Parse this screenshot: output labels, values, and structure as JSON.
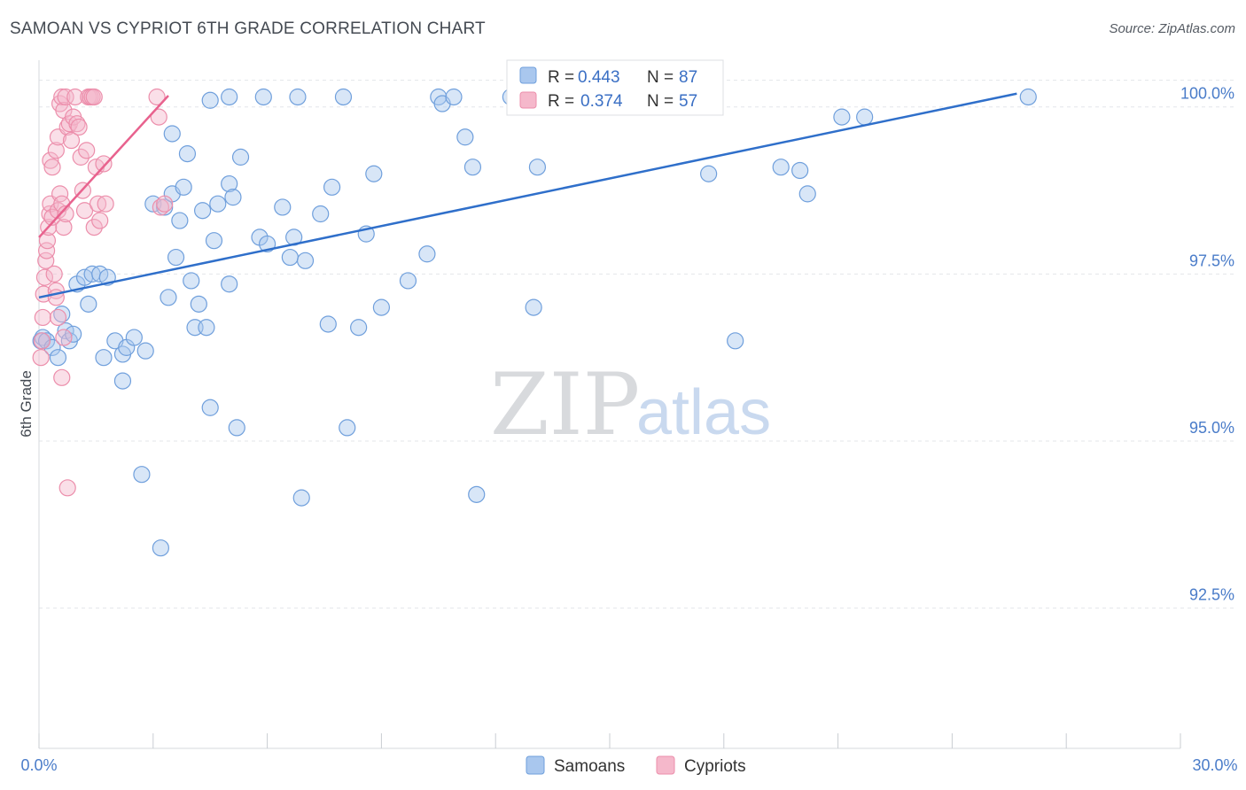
{
  "header": {
    "title": "SAMOAN VS CYPRIOT 6TH GRADE CORRELATION CHART",
    "source": "Source: ZipAtlas.com"
  },
  "watermark": {
    "zip": "ZIP",
    "atlas": "atlas"
  },
  "colors": {
    "samoans_fill": "#a9c7ee",
    "samoans_stroke": "#6f9fdc",
    "samoans_line": "#2f6fca",
    "cypriots_fill": "#f5b8cb",
    "cypriots_stroke": "#ec8eab",
    "cypriots_line": "#e8628e",
    "tick_text": "#4a7cc9",
    "grid": "#e3e6ea"
  },
  "legend": {
    "samoans": {
      "r_label": "R = ",
      "r_value": "0.443",
      "n_label": "N = ",
      "n_value": "87"
    },
    "cypriots": {
      "r_label": "R = ",
      "r_value": "0.374",
      "n_label": "N = ",
      "n_value": "57"
    }
  },
  "chart_data": {
    "type": "scatter",
    "title": "SAMOAN VS CYPRIOT 6TH GRADE CORRELATION CHART",
    "xlabel": "",
    "ylabel": "6th Grade",
    "xlim": [
      0,
      30
    ],
    "ylim": [
      90.2,
      100.5
    ],
    "x_tick_labels": [
      "0.0%",
      "30.0%"
    ],
    "y_ticks": [
      92.5,
      95.0,
      97.5,
      100.0
    ],
    "y_tick_labels": [
      "92.5%",
      "95.0%",
      "97.5%",
      "100.0%"
    ],
    "grid": true,
    "legend_position": "top-center",
    "series": [
      {
        "name": "Samoans",
        "r": 0.443,
        "n": 87,
        "trend": {
          "x": [
            0,
            25.7
          ],
          "y": [
            96.95,
            100.0
          ]
        },
        "points": [
          [
            0.05,
            96.3
          ],
          [
            0.1,
            96.35
          ],
          [
            0.2,
            96.3
          ],
          [
            0.35,
            96.2
          ],
          [
            0.5,
            96.05
          ],
          [
            0.6,
            96.7
          ],
          [
            0.7,
            96.45
          ],
          [
            0.8,
            96.3
          ],
          [
            0.9,
            96.4
          ],
          [
            1.0,
            97.15
          ],
          [
            1.2,
            97.25
          ],
          [
            1.3,
            96.85
          ],
          [
            1.4,
            97.3
          ],
          [
            1.6,
            97.3
          ],
          [
            1.8,
            97.25
          ],
          [
            1.7,
            96.05
          ],
          [
            2.0,
            96.3
          ],
          [
            2.2,
            96.1
          ],
          [
            2.3,
            96.2
          ],
          [
            2.5,
            96.35
          ],
          [
            2.2,
            95.7
          ],
          [
            2.8,
            96.15
          ],
          [
            3.0,
            98.35
          ],
          [
            3.3,
            98.3
          ],
          [
            3.4,
            96.95
          ],
          [
            3.5,
            98.5
          ],
          [
            3.6,
            97.55
          ],
          [
            3.5,
            99.4
          ],
          [
            3.7,
            98.1
          ],
          [
            3.8,
            98.6
          ],
          [
            3.9,
            99.1
          ],
          [
            4.0,
            97.2
          ],
          [
            4.1,
            96.5
          ],
          [
            4.2,
            96.85
          ],
          [
            4.3,
            98.25
          ],
          [
            4.4,
            96.5
          ],
          [
            4.5,
            95.3
          ],
          [
            4.6,
            97.8
          ],
          [
            4.5,
            99.9
          ],
          [
            4.7,
            98.35
          ],
          [
            5.0,
            99.95
          ],
          [
            5.0,
            98.65
          ],
          [
            5.1,
            98.45
          ],
          [
            5.2,
            95.0
          ],
          [
            5.0,
            97.15
          ],
          [
            5.3,
            99.05
          ],
          [
            5.8,
            97.85
          ],
          [
            5.9,
            99.95
          ],
          [
            6.0,
            97.75
          ],
          [
            6.4,
            98.3
          ],
          [
            6.6,
            97.55
          ],
          [
            6.7,
            97.85
          ],
          [
            6.8,
            99.95
          ],
          [
            6.9,
            93.95
          ],
          [
            7.0,
            97.5
          ],
          [
            7.4,
            98.2
          ],
          [
            7.6,
            96.55
          ],
          [
            7.7,
            98.6
          ],
          [
            8.0,
            99.95
          ],
          [
            8.1,
            95.0
          ],
          [
            8.4,
            96.5
          ],
          [
            8.6,
            97.9
          ],
          [
            8.8,
            98.8
          ],
          [
            9.0,
            96.8
          ],
          [
            9.7,
            97.2
          ],
          [
            10.2,
            97.6
          ],
          [
            10.5,
            99.95
          ],
          [
            10.6,
            99.85
          ],
          [
            10.9,
            99.95
          ],
          [
            11.2,
            99.35
          ],
          [
            11.4,
            98.9
          ],
          [
            11.5,
            94.0
          ],
          [
            12.4,
            99.95
          ],
          [
            13.0,
            96.8
          ],
          [
            13.1,
            98.9
          ],
          [
            14.2,
            99.95
          ],
          [
            14.9,
            99.95
          ],
          [
            17.6,
            98.8
          ],
          [
            18.3,
            96.3
          ],
          [
            19.5,
            98.9
          ],
          [
            20.0,
            98.85
          ],
          [
            20.2,
            98.5
          ],
          [
            21.1,
            99.65
          ],
          [
            21.7,
            99.65
          ],
          [
            26.0,
            99.95
          ],
          [
            2.7,
            94.3
          ],
          [
            3.2,
            93.2
          ]
        ]
      },
      {
        "name": "Cypriots",
        "r": 0.374,
        "n": 57,
        "trend": {
          "x": [
            0,
            3.4
          ],
          "y": [
            97.85,
            99.97
          ]
        },
        "points": [
          [
            0.05,
            96.05
          ],
          [
            0.08,
            96.3
          ],
          [
            0.1,
            96.65
          ],
          [
            0.12,
            97.0
          ],
          [
            0.15,
            97.25
          ],
          [
            0.18,
            97.5
          ],
          [
            0.2,
            97.65
          ],
          [
            0.22,
            97.8
          ],
          [
            0.25,
            98.0
          ],
          [
            0.28,
            98.2
          ],
          [
            0.3,
            98.35
          ],
          [
            0.35,
            98.15
          ],
          [
            0.4,
            97.3
          ],
          [
            0.45,
            97.05
          ],
          [
            0.5,
            98.25
          ],
          [
            0.55,
            98.5
          ],
          [
            0.6,
            98.35
          ],
          [
            0.65,
            98.0
          ],
          [
            0.7,
            98.2
          ],
          [
            0.3,
            99.0
          ],
          [
            0.35,
            98.9
          ],
          [
            0.45,
            99.15
          ],
          [
            0.5,
            99.35
          ],
          [
            0.55,
            99.85
          ],
          [
            0.6,
            99.95
          ],
          [
            0.65,
            99.75
          ],
          [
            0.7,
            99.95
          ],
          [
            0.75,
            99.5
          ],
          [
            0.8,
            99.55
          ],
          [
            0.85,
            99.3
          ],
          [
            0.9,
            99.65
          ],
          [
            0.95,
            99.95
          ],
          [
            1.0,
            99.55
          ],
          [
            1.05,
            99.5
          ],
          [
            1.1,
            99.05
          ],
          [
            1.15,
            98.55
          ],
          [
            1.2,
            98.25
          ],
          [
            1.25,
            99.15
          ],
          [
            1.3,
            99.95
          ],
          [
            1.35,
            99.95
          ],
          [
            1.4,
            99.95
          ],
          [
            1.45,
            99.95
          ],
          [
            1.5,
            98.9
          ],
          [
            1.55,
            98.35
          ],
          [
            1.45,
            98.0
          ],
          [
            1.6,
            98.1
          ],
          [
            1.7,
            98.95
          ],
          [
            1.75,
            98.35
          ],
          [
            0.6,
            95.75
          ],
          [
            0.75,
            94.1
          ],
          [
            3.2,
            98.3
          ],
          [
            3.3,
            98.35
          ],
          [
            3.1,
            99.95
          ],
          [
            3.15,
            99.65
          ],
          [
            0.5,
            96.65
          ],
          [
            0.65,
            96.35
          ],
          [
            0.45,
            96.95
          ]
        ]
      }
    ]
  },
  "bottom_legend": {
    "samoans": "Samoans",
    "cypriots": "Cypriots"
  }
}
